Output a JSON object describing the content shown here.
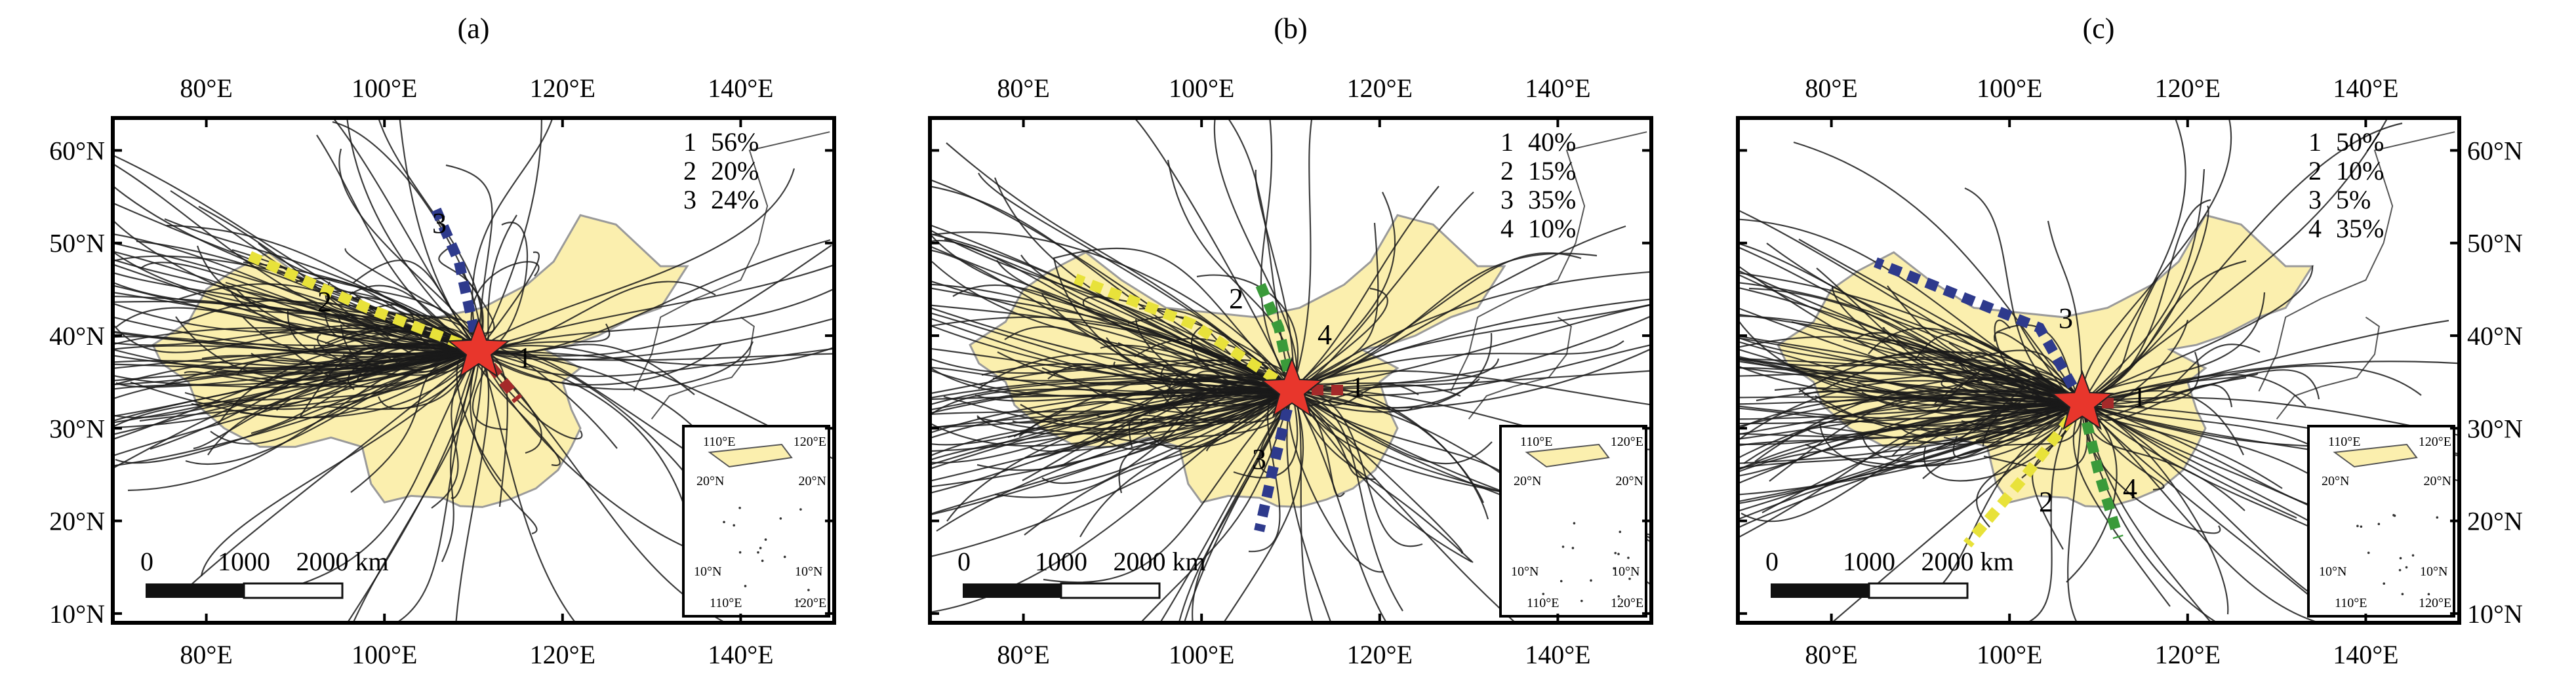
{
  "figure": {
    "panels": [
      {
        "label": "(a)",
        "clusters": [
          {
            "id": "1",
            "percent": "56%",
            "color": "#a52a2a"
          },
          {
            "id": "2",
            "percent": "20%",
            "color": "#e8e23a"
          },
          {
            "id": "3",
            "percent": "24%",
            "color": "#2e3a8c"
          }
        ]
      },
      {
        "label": "(b)",
        "clusters": [
          {
            "id": "1",
            "percent": "40%",
            "color": "#a52a2a"
          },
          {
            "id": "2",
            "percent": "15%",
            "color": "#e8e23a"
          },
          {
            "id": "3",
            "percent": "35%",
            "color": "#2e3a8c"
          },
          {
            "id": "4",
            "percent": "10%",
            "color": "#3a9a3a"
          }
        ]
      },
      {
        "label": "(c)",
        "clusters": [
          {
            "id": "1",
            "percent": "50%",
            "color": "#a52a2a"
          },
          {
            "id": "2",
            "percent": "10%",
            "color": "#e8e23a"
          },
          {
            "id": "3",
            "percent": "5%",
            "color": "#2e3a8c"
          },
          {
            "id": "4",
            "percent": "35%",
            "color": "#3a9a3a"
          }
        ]
      }
    ],
    "lon_ticks": [
      "80°E",
      "100°E",
      "120°E",
      "140°E"
    ],
    "lat_ticks": [
      "60°N",
      "50°N",
      "40°N",
      "30°N",
      "20°N",
      "10°N"
    ],
    "scale_bar": {
      "labels": [
        "0",
        "1000",
        "2000 km"
      ]
    },
    "inset": {
      "labels": [
        "110°E",
        "120°E",
        "20°N",
        "20°N",
        "10°N",
        "10°N",
        "110°E",
        "120°E"
      ]
    },
    "colors": {
      "land_fill": "#fbefae",
      "trajectory": "#1a1a1a",
      "receptor_star": "#e8362c",
      "frame": "#000000"
    }
  }
}
